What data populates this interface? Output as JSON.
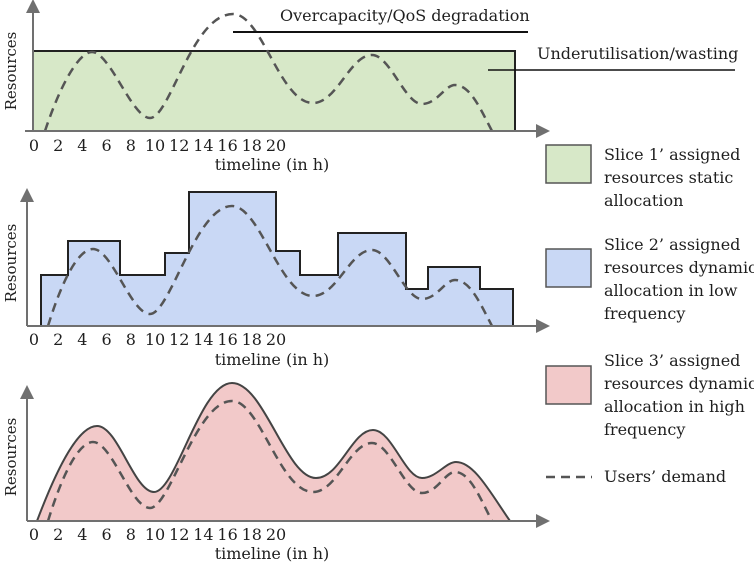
{
  "axes": {
    "ylabel": "Resources",
    "xlabel": "timeline (in h)",
    "ticks": [
      "0",
      "2",
      "4",
      "6",
      "8",
      "10",
      "12",
      "14",
      "16",
      "18",
      "20"
    ]
  },
  "annotations": {
    "overcapacity": "Overcapacity/QoS degradation",
    "underutilisation": "Underutilisation/wasting"
  },
  "legend": {
    "slice1": {
      "line1": "Slice 1’ assigned",
      "line2": "resources static",
      "line3": "allocation",
      "color": "#d7e8c8"
    },
    "slice2": {
      "line1": "Slice 2’ assigned",
      "line2": "resources  dynamic",
      "line3": "allocation in low",
      "line4": "frequency",
      "color": "#c9d8f5"
    },
    "slice3": {
      "line1": "Slice 3’ assigned",
      "line2": "resources  dynamic",
      "line3": "allocation in high",
      "line4": "frequency",
      "color": "#f2c9c9"
    },
    "demand": {
      "label": "Users’ demand"
    }
  },
  "colors": {
    "axis": "#707070",
    "slice1_fill": "#d7e8c8",
    "slice2_fill": "#c9d8f5",
    "slice3_fill": "#f2c9c9",
    "outline": "#222222",
    "demand": "#555555"
  }
}
